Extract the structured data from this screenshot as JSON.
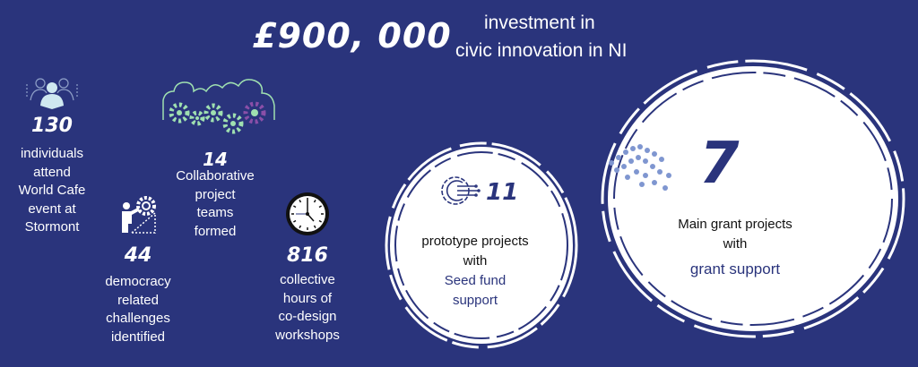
{
  "headline": {
    "amount": "£900, 000",
    "line1": "investment in",
    "line2": "civic innovation in NI"
  },
  "stats": [
    {
      "number": "130",
      "lines": [
        "individuals",
        "attend",
        "World Cafe",
        "event at",
        "Stormont"
      ],
      "icon": "people-icon"
    },
    {
      "number": "14",
      "lines": [
        "Collaborative",
        "project",
        "teams",
        "formed"
      ],
      "icon": "team-gears-icon"
    },
    {
      "number": "44",
      "lines": [
        "democracy",
        "related",
        "challenges",
        "identified"
      ],
      "icon": "climber-gear-icon"
    },
    {
      "number": "816",
      "lines": [
        "collective",
        "hours of",
        "co-design",
        "workshops"
      ],
      "icon": "clock-icon"
    }
  ],
  "seed": {
    "number": "11",
    "line1": "prototype projects",
    "line2": "with",
    "highlight1": "Seed fund",
    "highlight2": "support",
    "icon": "gear-circuit-icon"
  },
  "main": {
    "number": "7",
    "line1": "Main grant projects",
    "line2": "with",
    "highlight": "grant support",
    "icon": "crowd-icon"
  },
  "colors": {
    "background": "#2a347c",
    "accent_green": "#9fe0b0",
    "accent_purple": "#8a4fa8",
    "circle": "#ffffff"
  }
}
